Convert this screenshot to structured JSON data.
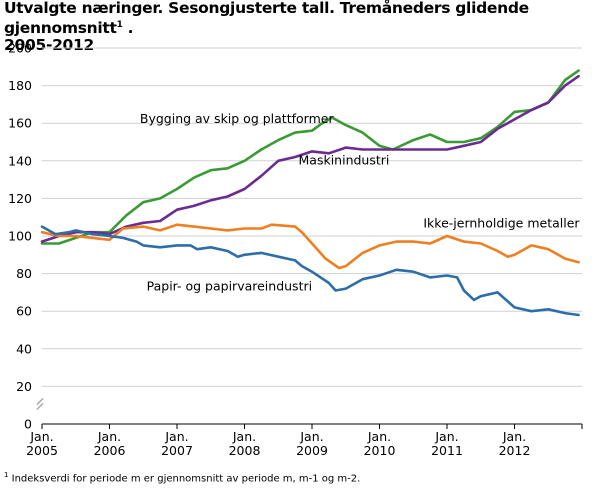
{
  "title_line1": "Utvalgte næringer. Sesongjusterte tall. Tremåneders glidende gjennomsnitt",
  "title_sup": "1",
  "title_end": " .",
  "title_line2": "2005-2012",
  "footnote_sup": "1",
  "footnote": " Indeksverdi for periode m er gjennomsnitt av periode m, m-1 og m-2.",
  "colors": {
    "bygging": "#3c9a35",
    "maskin": "#6b2c91",
    "ikkejern": "#ee7f22",
    "papir": "#2e6ea8",
    "grid": "#d0d0d0",
    "axis": "#000000"
  },
  "chart_data": {
    "type": "line",
    "title": "Utvalgte næringer. Sesongjusterte tall. Tremåneders glidende gjennomsnitt¹ . 2005-2012",
    "xlabel": "",
    "ylabel": "",
    "ylim": [
      0,
      200
    ],
    "xlim": [
      2005.0,
      2013.0
    ],
    "y_ticks": [
      "0",
      "20",
      "40",
      "60",
      "80",
      "100",
      "120",
      "140",
      "160",
      "180",
      "200"
    ],
    "x_ticks": [
      {
        "line1": "Jan.",
        "line2": "2005",
        "x": 2005.0
      },
      {
        "line1": "Jan.",
        "line2": "2006",
        "x": 2006.0
      },
      {
        "line1": "Jan.",
        "line2": "2007",
        "x": 2007.0
      },
      {
        "line1": "Jan.",
        "line2": "2008",
        "x": 2008.0
      },
      {
        "line1": "Jan.",
        "line2": "2009",
        "x": 2009.0
      },
      {
        "line1": "Jan.",
        "line2": "2010",
        "x": 2010.0
      },
      {
        "line1": "Jan.",
        "line2": "2011",
        "x": 2011.0
      },
      {
        "line1": "Jan.",
        "line2": "2012",
        "x": 2012.0
      }
    ],
    "grid": "horizontal",
    "axis_break": true,
    "series": [
      {
        "name": "Bygging av skip og plattformer",
        "color_key": "bygging",
        "points": [
          [
            2005.0,
            96
          ],
          [
            2005.25,
            96
          ],
          [
            2005.5,
            99
          ],
          [
            2005.75,
            102
          ],
          [
            2005.9,
            102
          ],
          [
            2006.0,
            102
          ],
          [
            2006.25,
            111
          ],
          [
            2006.5,
            118
          ],
          [
            2006.75,
            120
          ],
          [
            2007.0,
            125
          ],
          [
            2007.25,
            131
          ],
          [
            2007.5,
            135
          ],
          [
            2007.75,
            136
          ],
          [
            2008.0,
            140
          ],
          [
            2008.25,
            146
          ],
          [
            2008.5,
            151
          ],
          [
            2008.75,
            155
          ],
          [
            2009.0,
            156
          ],
          [
            2009.15,
            160
          ],
          [
            2009.3,
            163
          ],
          [
            2009.5,
            159
          ],
          [
            2009.75,
            155
          ],
          [
            2010.0,
            148
          ],
          [
            2010.2,
            146
          ],
          [
            2010.5,
            151
          ],
          [
            2010.75,
            154
          ],
          [
            2011.0,
            150
          ],
          [
            2011.25,
            150
          ],
          [
            2011.5,
            152
          ],
          [
            2011.75,
            158
          ],
          [
            2012.0,
            166
          ],
          [
            2012.25,
            167
          ],
          [
            2012.5,
            171
          ],
          [
            2012.75,
            183
          ],
          [
            2012.95,
            188
          ]
        ]
      },
      {
        "name": "Maskinindustri",
        "color_key": "maskin",
        "points": [
          [
            2005.0,
            97
          ],
          [
            2005.25,
            100
          ],
          [
            2005.5,
            102
          ],
          [
            2005.75,
            102
          ],
          [
            2006.0,
            101
          ],
          [
            2006.25,
            105
          ],
          [
            2006.5,
            107
          ],
          [
            2006.75,
            108
          ],
          [
            2007.0,
            114
          ],
          [
            2007.25,
            116
          ],
          [
            2007.5,
            119
          ],
          [
            2007.75,
            121
          ],
          [
            2008.0,
            125
          ],
          [
            2008.25,
            132
          ],
          [
            2008.5,
            140
          ],
          [
            2008.75,
            142
          ],
          [
            2009.0,
            145
          ],
          [
            2009.25,
            144
          ],
          [
            2009.5,
            147
          ],
          [
            2009.75,
            146
          ],
          [
            2010.0,
            146
          ],
          [
            2010.25,
            146
          ],
          [
            2010.5,
            146
          ],
          [
            2010.75,
            146
          ],
          [
            2011.0,
            146
          ],
          [
            2011.25,
            148
          ],
          [
            2011.5,
            150
          ],
          [
            2011.75,
            157
          ],
          [
            2012.0,
            162
          ],
          [
            2012.25,
            167
          ],
          [
            2012.5,
            171
          ],
          [
            2012.75,
            180
          ],
          [
            2012.95,
            185
          ]
        ]
      },
      {
        "name": "Ikke-jernholdige metaller",
        "color_key": "ikkejern",
        "points": [
          [
            2005.0,
            102
          ],
          [
            2005.25,
            100
          ],
          [
            2005.5,
            100
          ],
          [
            2005.75,
            99
          ],
          [
            2006.0,
            98
          ],
          [
            2006.2,
            104
          ],
          [
            2006.5,
            105
          ],
          [
            2006.75,
            103
          ],
          [
            2007.0,
            106
          ],
          [
            2007.25,
            105
          ],
          [
            2007.5,
            104
          ],
          [
            2007.75,
            103
          ],
          [
            2008.0,
            104
          ],
          [
            2008.25,
            104
          ],
          [
            2008.4,
            106
          ],
          [
            2008.75,
            105
          ],
          [
            2008.85,
            102
          ],
          [
            2009.0,
            96
          ],
          [
            2009.2,
            88
          ],
          [
            2009.4,
            83
          ],
          [
            2009.5,
            84
          ],
          [
            2009.75,
            91
          ],
          [
            2010.0,
            95
          ],
          [
            2010.25,
            97
          ],
          [
            2010.5,
            97
          ],
          [
            2010.75,
            96
          ],
          [
            2011.0,
            100
          ],
          [
            2011.25,
            97
          ],
          [
            2011.5,
            96
          ],
          [
            2011.75,
            92
          ],
          [
            2011.9,
            89
          ],
          [
            2012.0,
            90
          ],
          [
            2012.25,
            95
          ],
          [
            2012.5,
            93
          ],
          [
            2012.75,
            88
          ],
          [
            2012.95,
            86
          ]
        ]
      },
      {
        "name": "Papir- og papirvareindustri",
        "color_key": "papir",
        "points": [
          [
            2005.0,
            105
          ],
          [
            2005.2,
            101
          ],
          [
            2005.4,
            102
          ],
          [
            2005.5,
            103
          ],
          [
            2005.75,
            101
          ],
          [
            2006.0,
            100
          ],
          [
            2006.2,
            99
          ],
          [
            2006.4,
            97
          ],
          [
            2006.5,
            95
          ],
          [
            2006.75,
            94
          ],
          [
            2007.0,
            95
          ],
          [
            2007.2,
            95
          ],
          [
            2007.3,
            93
          ],
          [
            2007.5,
            94
          ],
          [
            2007.75,
            92
          ],
          [
            2007.9,
            89
          ],
          [
            2008.0,
            90
          ],
          [
            2008.25,
            91
          ],
          [
            2008.5,
            89
          ],
          [
            2008.75,
            87
          ],
          [
            2008.85,
            84
          ],
          [
            2009.0,
            81
          ],
          [
            2009.25,
            75
          ],
          [
            2009.35,
            71
          ],
          [
            2009.5,
            72
          ],
          [
            2009.75,
            77
          ],
          [
            2010.0,
            79
          ],
          [
            2010.25,
            82
          ],
          [
            2010.5,
            81
          ],
          [
            2010.75,
            78
          ],
          [
            2011.0,
            79
          ],
          [
            2011.15,
            78
          ],
          [
            2011.25,
            71
          ],
          [
            2011.4,
            66
          ],
          [
            2011.5,
            68
          ],
          [
            2011.75,
            70
          ],
          [
            2012.0,
            62
          ],
          [
            2012.25,
            60
          ],
          [
            2012.5,
            61
          ],
          [
            2012.75,
            59
          ],
          [
            2012.95,
            58
          ]
        ]
      }
    ],
    "annotations": [
      {
        "series": "Bygging av skip og plattformer",
        "text": "Bygging av skip og plattformer",
        "x": 2006.45,
        "y": 160,
        "anchor": "start"
      },
      {
        "series": "Maskinindustri",
        "text": "Maskinindustri",
        "x": 2008.8,
        "y": 138,
        "anchor": "start"
      },
      {
        "series": "Ikke-jernholdige metaller",
        "text": "Ikke-jernholdige metaller",
        "x": 2010.65,
        "y": 104.5,
        "anchor": "start"
      },
      {
        "series": "Papir- og papirvareindustri",
        "text": "Papir- og papirvareindustri",
        "x": 2006.55,
        "y": 71,
        "anchor": "start"
      }
    ]
  }
}
